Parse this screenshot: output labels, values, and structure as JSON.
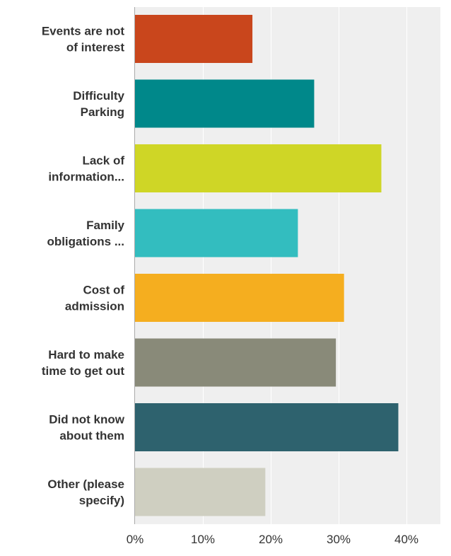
{
  "chart_data": {
    "type": "bar",
    "orientation": "horizontal",
    "categories": [
      [
        "Events are not",
        "of interest"
      ],
      [
        "Difficulty",
        "Parking"
      ],
      [
        "Lack of",
        "information..."
      ],
      [
        "Family",
        "obligations ..."
      ],
      [
        "Cost of",
        "admission"
      ],
      [
        "Hard to make",
        "time to get out"
      ],
      [
        "Did not know",
        "about them"
      ],
      [
        "Other (please",
        "specify)"
      ]
    ],
    "values": [
      17.3,
      26.4,
      36.3,
      24.0,
      30.8,
      29.6,
      38.8,
      19.2
    ],
    "colors": [
      "#c9461c",
      "#00888a",
      "#cfd626",
      "#33bdbf",
      "#f5ae1f",
      "#898a79",
      "#2e626e",
      "#cfcfc1"
    ],
    "xlim": [
      0,
      45
    ],
    "xticks": [
      0,
      10,
      20,
      30,
      40
    ],
    "tick_labels": [
      "0%",
      "10%",
      "20%",
      "30%",
      "40%"
    ],
    "grid": true,
    "title": "",
    "xlabel": "",
    "ylabel": ""
  }
}
